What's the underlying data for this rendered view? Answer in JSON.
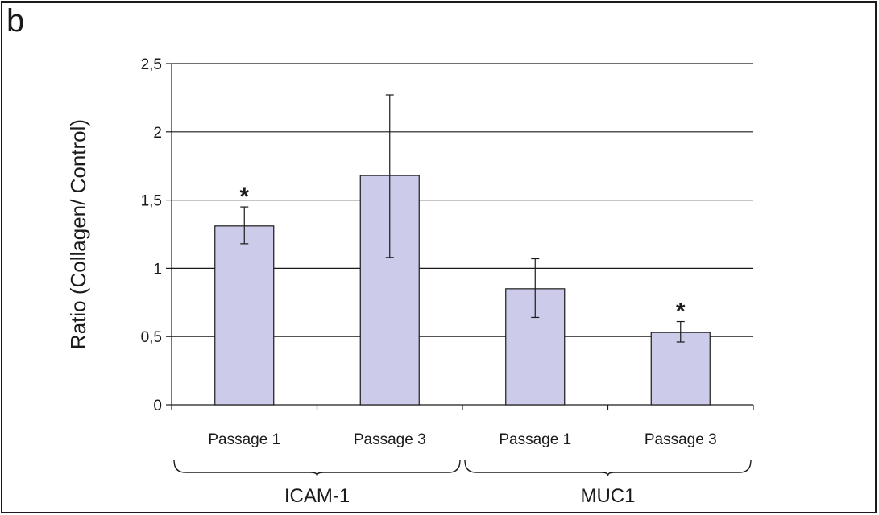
{
  "panel_label": "b",
  "chart_data": {
    "type": "bar",
    "ylabel": "Ratio (Collagen/ Control)",
    "ylim": [
      0,
      2.5
    ],
    "yticks": [
      {
        "value": 0,
        "label": "0"
      },
      {
        "value": 0.5,
        "label": "0,5"
      },
      {
        "value": 1,
        "label": "1"
      },
      {
        "value": 1.5,
        "label": "1,5"
      },
      {
        "value": 2,
        "label": "2"
      },
      {
        "value": 2.5,
        "label": "2,5"
      }
    ],
    "grid": true,
    "categories": [
      "Passage 1",
      "Passage 3",
      "Passage 1",
      "Passage 3"
    ],
    "groups": [
      {
        "label": "ICAM-1",
        "categories": [
          0,
          1
        ]
      },
      {
        "label": "MUC1",
        "categories": [
          2,
          3
        ]
      }
    ],
    "values": [
      1.31,
      1.68,
      0.85,
      0.53
    ],
    "errors": [
      {
        "low": 1.18,
        "high": 1.45
      },
      {
        "low": 1.08,
        "high": 2.27
      },
      {
        "low": 0.64,
        "high": 1.07
      },
      {
        "low": 0.46,
        "high": 0.61
      }
    ],
    "significance": [
      "*",
      "",
      "",
      "*"
    ],
    "bar_color": "#ccccea",
    "bar_edge": "#1a1a1a"
  }
}
